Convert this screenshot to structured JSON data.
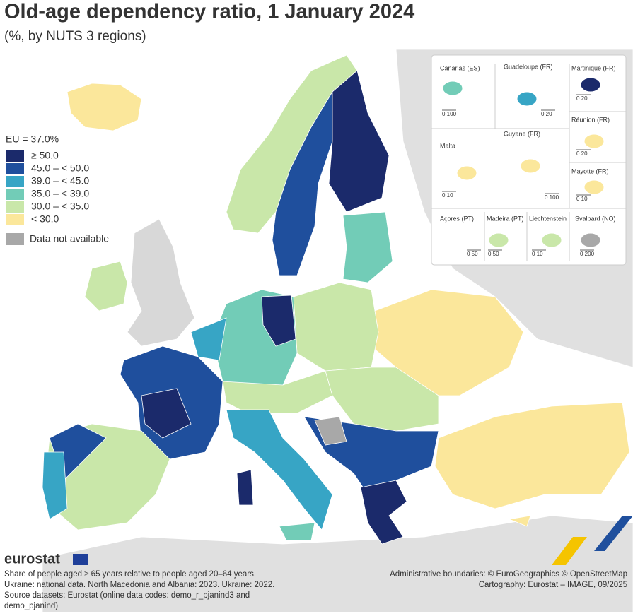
{
  "header": {
    "title": "Old-age dependency ratio, 1 January 2024",
    "subtitle": "(%, by NUTS 3 regions)"
  },
  "legend": {
    "title": "EU = 37.0%",
    "classes": [
      {
        "label": "≥ 50.0",
        "color": "#1b2a6b"
      },
      {
        "label": "45.0 – < 50.0",
        "color": "#1f4f9d"
      },
      {
        "label": "39.0 – < 45.0",
        "color": "#37a5c5"
      },
      {
        "label": "35.0 – < 39.0",
        "color": "#72ccb7"
      },
      {
        "label": "30.0 – < 35.0",
        "color": "#c9e7a9"
      },
      {
        "label": "< 30.0",
        "color": "#fbe79b"
      }
    ],
    "not_available": {
      "label": "Data not available",
      "color": "#a8a8a8"
    }
  },
  "insets": [
    {
      "label": "Canarias (ES)",
      "scale": "0   100"
    },
    {
      "label": "Guadeloupe (FR)",
      "scale": "0  20"
    },
    {
      "label": "Martinique (FR)",
      "scale": "0  20"
    },
    {
      "label": "Réunion (FR)",
      "scale": "0  20"
    },
    {
      "label": "Malta",
      "scale": "0  10"
    },
    {
      "label": "Guyane (FR)",
      "scale": "0   100"
    },
    {
      "label": "Mayotte (FR)",
      "scale": "0 10"
    },
    {
      "label": "Açores (PT)",
      "scale": "0  50"
    },
    {
      "label": "Madeira (PT)",
      "scale": "0    50"
    },
    {
      "label": "Liechtenstein",
      "scale": "0  10"
    },
    {
      "label": "Svalbard (NO)",
      "scale": "0   200"
    }
  ],
  "footer": {
    "logo": "eurostat",
    "notes": [
      "Share of people aged ≥ 65 years relative to people aged 20–64 years.",
      "Ukraine: national data. North Macedonia and Albania: 2023. Ukraine: 2022.",
      "Source datasets: Eurostat (online data codes: demo_r_pjanind3 and",
      "demo_pjanind)"
    ],
    "credits": [
      "Administrative boundaries: © EuroGeographics © OpenStreetMap",
      "Cartography: Eurostat – IMAGE, 09/2025"
    ]
  }
}
